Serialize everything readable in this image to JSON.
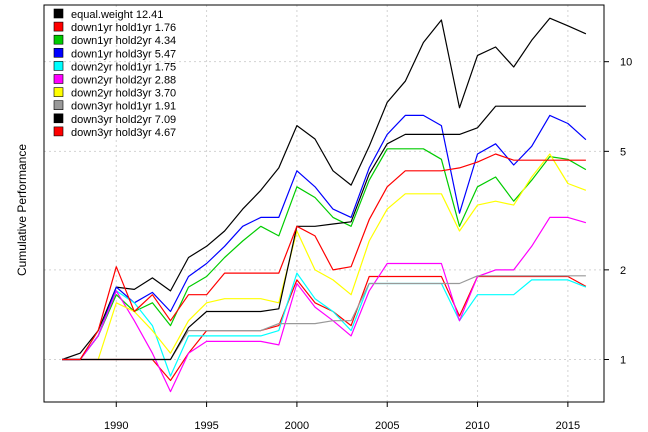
{
  "chart_data": {
    "type": "line",
    "title": "",
    "xlabel": "",
    "ylabel": "Cumulative Performance",
    "y_scale": "log",
    "xlim": [
      1986,
      2017
    ],
    "ylim": [
      0.72,
      15.5
    ],
    "x_ticks": [
      1990,
      1995,
      2000,
      2005,
      2010,
      2015
    ],
    "x_tick_labels": [
      "1990",
      "1995",
      "2000",
      "2005",
      "2010",
      "2015"
    ],
    "y_ticks": [
      1,
      2,
      5,
      10
    ],
    "y_tick_labels": [
      "1",
      "2",
      "5",
      "10"
    ],
    "grid": true,
    "legend_position": "top-left",
    "series": [
      {
        "name": "equal.weight",
        "final_label": "12.41",
        "color": "#000000",
        "x": [
          1987,
          1988,
          1989,
          1990,
          1991,
          1992,
          1993,
          1994,
          1995,
          1996,
          1997,
          1998,
          1999,
          2000,
          2001,
          2002,
          2003,
          2004,
          2005,
          2006,
          2007,
          2008,
          2009,
          2010,
          2011,
          2012,
          2013,
          2014,
          2015,
          2016
        ],
        "y": [
          1.0,
          1.05,
          1.25,
          1.75,
          1.72,
          1.88,
          1.7,
          2.2,
          2.4,
          2.7,
          3.2,
          3.7,
          4.4,
          6.1,
          5.5,
          4.3,
          3.85,
          5.2,
          7.3,
          8.6,
          11.6,
          13.8,
          7.0,
          10.5,
          11.2,
          9.6,
          11.8,
          14.0,
          13.2,
          12.41
        ]
      },
      {
        "name": "down1yr hold1yr",
        "final_label": "1.76",
        "color": "#ff0000",
        "x": [
          1987,
          1988,
          1989,
          1990,
          1991,
          1992,
          1993,
          1994,
          1995,
          1996,
          1997,
          1998,
          1999,
          2000,
          2001,
          2002,
          2003,
          2004,
          2005,
          2006,
          2007,
          2008,
          2009,
          2010,
          2011,
          2012,
          2013,
          2014,
          2015,
          2016
        ],
        "y": [
          1.0,
          1.0,
          1.0,
          1.0,
          1.0,
          1.0,
          0.85,
          1.05,
          1.25,
          1.25,
          1.25,
          1.25,
          1.3,
          1.85,
          1.55,
          1.45,
          1.3,
          1.9,
          1.9,
          1.9,
          1.9,
          1.9,
          1.4,
          1.9,
          1.9,
          1.9,
          1.9,
          1.9,
          1.9,
          1.76
        ]
      },
      {
        "name": "down1yr hold2yr",
        "final_label": "4.34",
        "color": "#00cc00",
        "x": [
          1987,
          1988,
          1989,
          1990,
          1991,
          1992,
          1993,
          1994,
          1995,
          1996,
          1997,
          1998,
          1999,
          2000,
          2001,
          2002,
          2003,
          2004,
          2005,
          2006,
          2007,
          2008,
          2009,
          2010,
          2011,
          2012,
          2013,
          2014,
          2015,
          2016
        ],
        "y": [
          1.0,
          1.0,
          1.2,
          1.65,
          1.45,
          1.55,
          1.3,
          1.75,
          1.9,
          2.2,
          2.5,
          2.8,
          2.6,
          3.8,
          3.5,
          3.0,
          2.8,
          4.0,
          5.1,
          5.1,
          5.1,
          4.7,
          2.8,
          3.8,
          4.1,
          3.4,
          4.0,
          4.8,
          4.7,
          4.34
        ]
      },
      {
        "name": "down1yr hold3yr",
        "final_label": "5.47",
        "color": "#0000ff",
        "x": [
          1987,
          1988,
          1989,
          1990,
          1991,
          1992,
          1993,
          1994,
          1995,
          1996,
          1997,
          1998,
          1999,
          2000,
          2001,
          2002,
          2003,
          2004,
          2005,
          2006,
          2007,
          2008,
          2009,
          2010,
          2011,
          2012,
          2013,
          2014,
          2015,
          2016
        ],
        "y": [
          1.0,
          1.0,
          1.2,
          1.75,
          1.55,
          1.68,
          1.45,
          1.9,
          2.1,
          2.4,
          2.8,
          3.0,
          3.0,
          4.3,
          3.8,
          3.2,
          3.0,
          4.4,
          5.7,
          6.6,
          6.6,
          6.1,
          3.1,
          4.9,
          5.3,
          4.5,
          5.2,
          6.6,
          6.2,
          5.47
        ]
      },
      {
        "name": "down2yr hold1yr",
        "final_label": "1.75",
        "color": "#00ffff",
        "x": [
          1987,
          1988,
          1989,
          1990,
          1991,
          1992,
          1993,
          1994,
          1995,
          1996,
          1997,
          1998,
          1999,
          2000,
          2001,
          2002,
          2003,
          2004,
          2005,
          2006,
          2007,
          2008,
          2009,
          2010,
          2011,
          2012,
          2013,
          2014,
          2015,
          2016
        ],
        "y": [
          1.0,
          1.0,
          1.2,
          1.7,
          1.55,
          1.3,
          0.88,
          1.2,
          1.2,
          1.2,
          1.2,
          1.2,
          1.25,
          1.95,
          1.6,
          1.45,
          1.25,
          1.8,
          1.8,
          1.8,
          1.8,
          1.8,
          1.35,
          1.65,
          1.65,
          1.65,
          1.85,
          1.85,
          1.85,
          1.75
        ]
      },
      {
        "name": "down2yr hold2yr",
        "final_label": "2.88",
        "color": "#ff00ff",
        "x": [
          1987,
          1988,
          1989,
          1990,
          1991,
          1992,
          1993,
          1994,
          1995,
          1996,
          1997,
          1998,
          1999,
          2000,
          2001,
          2002,
          2003,
          2004,
          2005,
          2006,
          2007,
          2008,
          2009,
          2010,
          2011,
          2012,
          2013,
          2014,
          2015,
          2016
        ],
        "y": [
          1.0,
          1.0,
          1.2,
          1.7,
          1.35,
          1.05,
          0.78,
          1.05,
          1.15,
          1.15,
          1.15,
          1.15,
          1.12,
          1.8,
          1.5,
          1.35,
          1.2,
          1.7,
          2.1,
          2.1,
          2.1,
          2.1,
          1.35,
          1.9,
          2.0,
          2.0,
          2.4,
          3.0,
          3.0,
          2.88
        ]
      },
      {
        "name": "down2yr hold3yr",
        "final_label": "3.70",
        "color": "#ffff00",
        "x": [
          1989,
          1990,
          1991,
          1992,
          1993,
          1994,
          1995,
          1996,
          1997,
          1998,
          1999,
          2000,
          2001,
          2002,
          2003,
          2004,
          2005,
          2006,
          2007,
          2008,
          2009,
          2010,
          2011,
          2012,
          2013,
          2014,
          2015,
          2016
        ],
        "y": [
          1.0,
          1.55,
          1.45,
          1.25,
          1.05,
          1.35,
          1.55,
          1.6,
          1.6,
          1.6,
          1.55,
          2.7,
          2.0,
          1.85,
          1.65,
          2.5,
          3.2,
          3.6,
          3.6,
          3.6,
          2.7,
          3.3,
          3.4,
          3.3,
          4.1,
          4.9,
          3.9,
          3.7
        ]
      },
      {
        "name": "down3yr hold1yr",
        "final_label": "1.91",
        "color": "#999999",
        "x": [
          1987,
          1988,
          1989,
          1990,
          1991,
          1992,
          1993,
          1994,
          1995,
          1996,
          1997,
          1998,
          1999,
          2000,
          2001,
          2002,
          2003,
          2004,
          2005,
          2006,
          2007,
          2008,
          2009,
          2010,
          2011,
          2012,
          2013,
          2014,
          2015,
          2016
        ],
        "y": [
          1.0,
          1.0,
          1.0,
          1.0,
          1.0,
          1.0,
          1.0,
          1.25,
          1.25,
          1.25,
          1.25,
          1.25,
          1.32,
          1.32,
          1.32,
          1.35,
          1.35,
          1.8,
          1.8,
          1.8,
          1.8,
          1.8,
          1.8,
          1.91,
          1.91,
          1.91,
          1.91,
          1.91,
          1.91,
          1.91
        ]
      },
      {
        "name": "down3yr hold2yr",
        "final_label": "7.09",
        "color": "#000000",
        "x": [
          1987,
          1988,
          1989,
          1990,
          1991,
          1992,
          1993,
          1994,
          1995,
          1996,
          1997,
          1998,
          1999,
          2000,
          2001,
          2002,
          2003,
          2004,
          2005,
          2006,
          2007,
          2008,
          2009,
          2010,
          2011,
          2012,
          2013,
          2014,
          2015,
          2016
        ],
        "y": [
          1.0,
          1.0,
          1.0,
          1.0,
          1.0,
          1.0,
          1.0,
          1.28,
          1.45,
          1.45,
          1.45,
          1.45,
          1.48,
          2.8,
          2.8,
          2.85,
          2.9,
          4.2,
          5.3,
          5.7,
          5.7,
          5.7,
          5.7,
          6.0,
          7.09,
          7.09,
          7.09,
          7.09,
          7.09,
          7.09
        ]
      },
      {
        "name": "down3yr hold3yr",
        "final_label": "4.67",
        "color": "#ff0000",
        "x": [
          1987,
          1988,
          1989,
          1990,
          1991,
          1992,
          1993,
          1994,
          1995,
          1996,
          1997,
          1998,
          1999,
          2000,
          2001,
          2002,
          2003,
          2004,
          2005,
          2006,
          2007,
          2008,
          2009,
          2010,
          2011,
          2012,
          2013,
          2014,
          2015,
          2016
        ],
        "y": [
          1.0,
          1.0,
          1.25,
          2.05,
          1.45,
          1.65,
          1.35,
          1.65,
          1.65,
          1.95,
          1.95,
          1.95,
          1.95,
          2.8,
          2.6,
          2.0,
          2.05,
          2.95,
          3.8,
          4.3,
          4.3,
          4.3,
          4.4,
          4.6,
          4.9,
          4.67,
          4.67,
          4.67,
          4.67,
          4.67
        ]
      }
    ]
  }
}
